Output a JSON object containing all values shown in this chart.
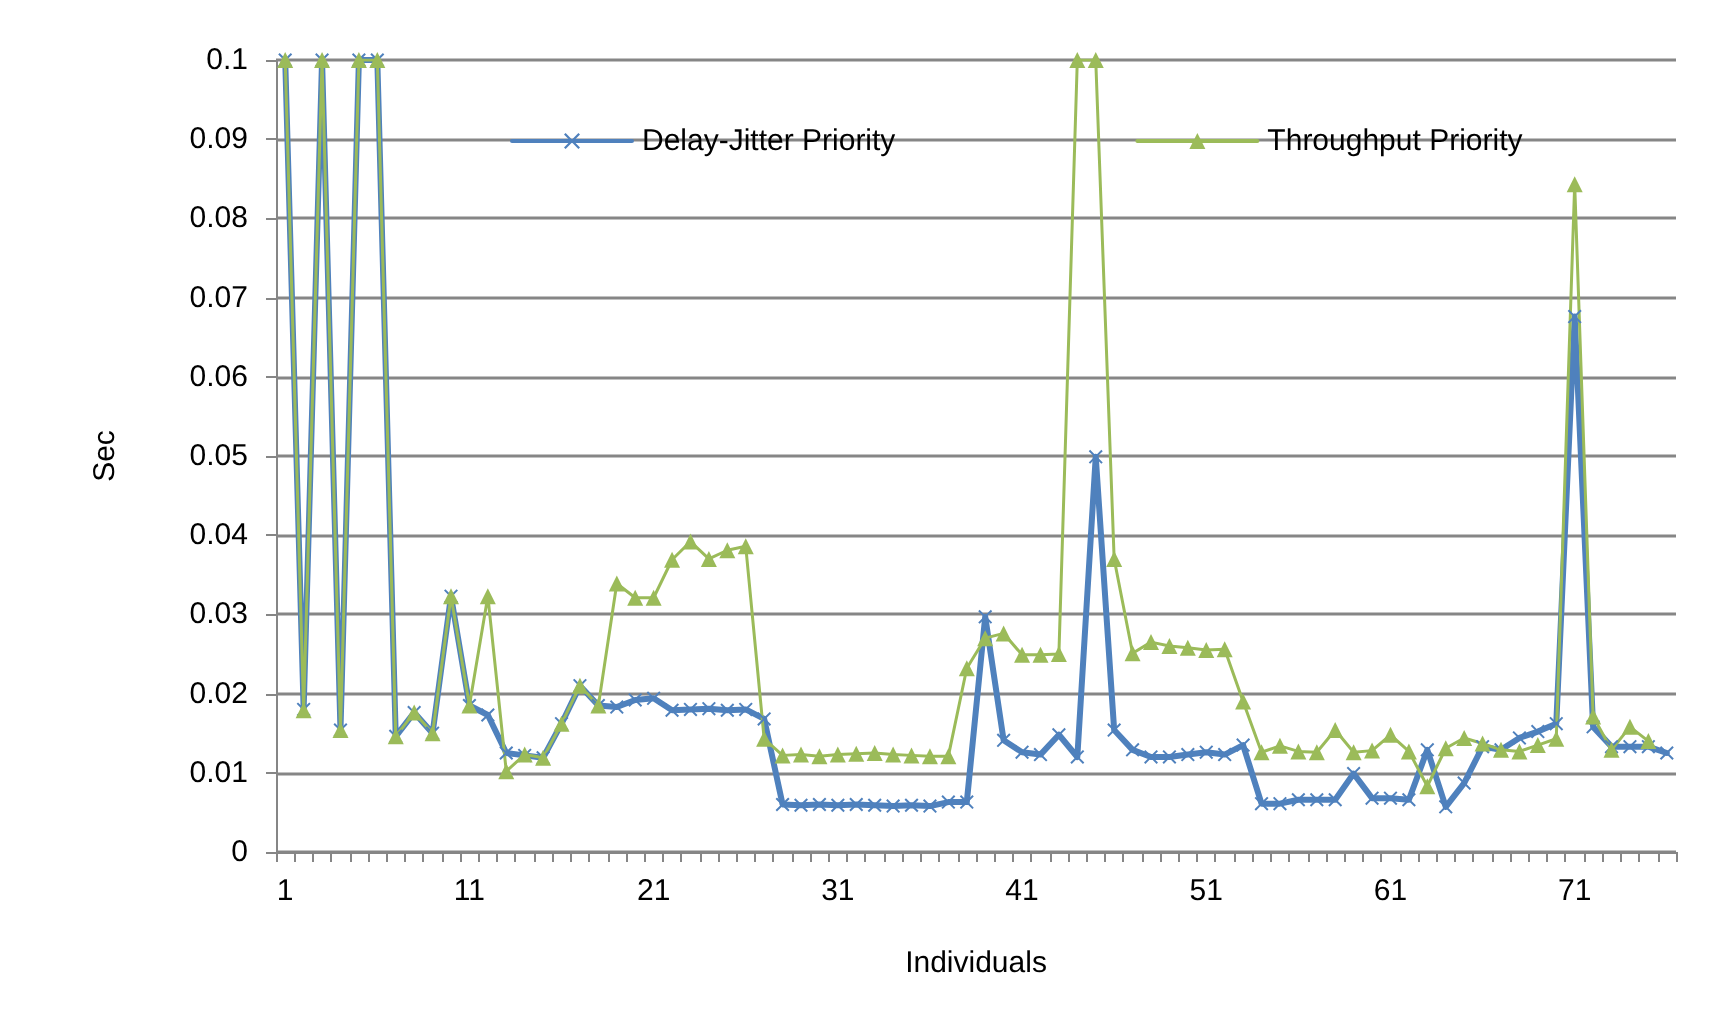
{
  "chart_data": {
    "type": "line",
    "xlabel": "Individuals",
    "ylabel": "Sec",
    "categories": [
      "1",
      null,
      null,
      null,
      null,
      null,
      null,
      null,
      null,
      null,
      "11",
      null,
      null,
      null,
      null,
      null,
      null,
      null,
      null,
      null,
      "21",
      null,
      null,
      null,
      null,
      null,
      null,
      null,
      null,
      null,
      "31",
      null,
      null,
      null,
      null,
      null,
      null,
      null,
      null,
      null,
      "41",
      null,
      null,
      null,
      null,
      null,
      null,
      null,
      null,
      null,
      "51",
      null,
      null,
      null,
      null,
      null,
      null,
      null,
      null,
      null,
      "61",
      null,
      null,
      null,
      null,
      null,
      null,
      null,
      null,
      null,
      "71",
      null,
      null,
      null,
      null,
      null
    ],
    "series": [
      {
        "name": "Delay-Jitter Priority",
        "color": "#4f81bd",
        "marker": "cross",
        "values": [
          0.1,
          0.018,
          0.1,
          0.0154,
          0.1,
          0.1,
          0.0146,
          0.0176,
          0.015,
          0.0323,
          0.0185,
          0.0173,
          0.0125,
          0.0122,
          0.0119,
          0.0162,
          0.021,
          0.0185,
          0.0183,
          0.0192,
          0.0194,
          0.0179,
          0.018,
          0.0181,
          0.0179,
          0.018,
          0.0168,
          0.006,
          0.0059,
          0.006,
          0.0059,
          0.006,
          0.0059,
          0.0058,
          0.0059,
          0.0058,
          0.0063,
          0.0063,
          0.0297,
          0.0141,
          0.0126,
          0.0123,
          0.0148,
          0.012,
          0.0499,
          0.0154,
          0.0129,
          0.012,
          0.012,
          0.0123,
          0.0126,
          0.0123,
          0.0135,
          0.0061,
          0.0061,
          0.0066,
          0.0066,
          0.0066,
          0.0099,
          0.0068,
          0.0068,
          0.0066,
          0.0129,
          0.0057,
          0.0087,
          0.0133,
          0.0129,
          0.0144,
          0.0152,
          0.0162,
          0.0676,
          0.0158,
          0.0133,
          0.0133,
          0.0133,
          0.0125
        ]
      },
      {
        "name": "Throughput Priority",
        "color": "#9bbb59",
        "marker": "triangle",
        "values": [
          0.1,
          0.0179,
          0.1,
          0.0154,
          0.1,
          0.1,
          0.0146,
          0.0176,
          0.015,
          0.0323,
          0.0185,
          0.0323,
          0.0102,
          0.0123,
          0.0119,
          0.0162,
          0.021,
          0.0185,
          0.0339,
          0.0321,
          0.0321,
          0.0369,
          0.0392,
          0.037,
          0.0381,
          0.0386,
          0.0143,
          0.0122,
          0.0123,
          0.0121,
          0.0123,
          0.0124,
          0.0125,
          0.0123,
          0.0122,
          0.0121,
          0.0121,
          0.0232,
          0.027,
          0.0276,
          0.0249,
          0.0249,
          0.025,
          0.1,
          0.1,
          0.037,
          0.0251,
          0.0265,
          0.026,
          0.0258,
          0.0255,
          0.0256,
          0.019,
          0.0126,
          0.0134,
          0.0127,
          0.0126,
          0.0154,
          0.0126,
          0.0128,
          0.0148,
          0.0127,
          0.0083,
          0.0131,
          0.0144,
          0.0137,
          0.0129,
          0.0127,
          0.0135,
          0.0143,
          0.0843,
          0.0171,
          0.0129,
          0.0158,
          0.014,
          null
        ]
      }
    ],
    "ylim": [
      0,
      0.1
    ],
    "yticks": [
      0,
      0.01,
      0.02,
      0.03,
      0.04,
      0.05,
      0.06,
      0.07,
      0.08,
      0.09,
      0.1
    ],
    "grid": "y",
    "legend": "top",
    "line_style": "solid"
  }
}
